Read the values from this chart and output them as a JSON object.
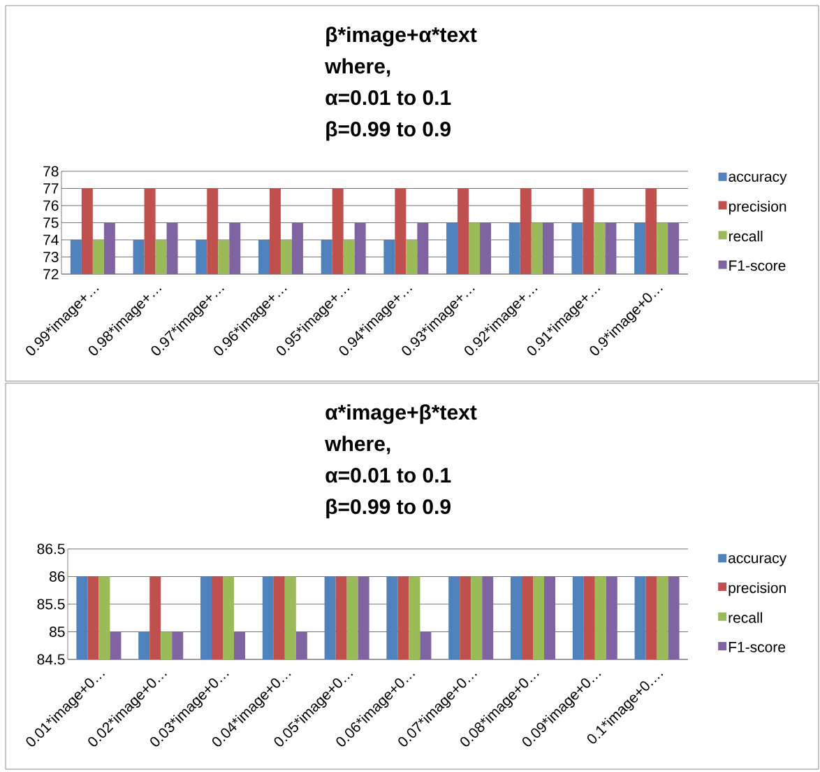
{
  "chart_data": [
    {
      "type": "bar",
      "title": "β*image+α*text",
      "subtitle": "where,",
      "annotations": [
        "α=0.01 to 0.1",
        "β=0.99 to 0.9"
      ],
      "categories": [
        "0.99*image+…",
        "0.98*image+…",
        "0.97*image+…",
        "0.96*image+…",
        "0.95*image+…",
        "0.94*image+…",
        "0.93*image+…",
        "0.92*image+…",
        "0.91*image+…",
        "0.9*image+0…"
      ],
      "series": [
        {
          "name": "accuracy",
          "color": "#4f81bd",
          "values": [
            74,
            74,
            74,
            74,
            74,
            74,
            75,
            75,
            75,
            75
          ]
        },
        {
          "name": "precision",
          "color": "#c0504d",
          "values": [
            77,
            77,
            77,
            77,
            77,
            77,
            77,
            77,
            77,
            77
          ]
        },
        {
          "name": "recall",
          "color": "#9bbb59",
          "values": [
            74,
            74,
            74,
            74,
            74,
            74,
            75,
            75,
            75,
            75
          ]
        },
        {
          "name": "F1-score",
          "color": "#8064a2",
          "values": [
            75,
            75,
            75,
            75,
            75,
            75,
            75,
            75,
            75,
            75
          ]
        }
      ],
      "ylim": [
        72,
        78
      ],
      "yticks": [
        72,
        73,
        74,
        75,
        76,
        77,
        78
      ],
      "grid": "y",
      "legend": "right"
    },
    {
      "type": "bar",
      "title": "α*image+β*text",
      "subtitle": "where,",
      "annotations": [
        "α=0.01 to 0.1",
        "β=0.99 to 0.9"
      ],
      "categories": [
        "0.01*image+0…",
        "0.02*image+0…",
        "0.03*image+0…",
        "0.04*image+0…",
        "0.05*image+0…",
        "0.06*image+0…",
        "0.07*image+0…",
        "0.08*image+0…",
        "0.09*image+0…",
        "0.1*image+0.…"
      ],
      "series": [
        {
          "name": "accuracy",
          "color": "#4f81bd",
          "values": [
            86,
            85,
            86,
            86,
            86,
            86,
            86,
            86,
            86,
            86
          ]
        },
        {
          "name": "precision",
          "color": "#c0504d",
          "values": [
            86,
            86,
            86,
            86,
            86,
            86,
            86,
            86,
            86,
            86
          ]
        },
        {
          "name": "recall",
          "color": "#9bbb59",
          "values": [
            86,
            85,
            86,
            86,
            86,
            86,
            86,
            86,
            86,
            86
          ]
        },
        {
          "name": "F1-score",
          "color": "#8064a2",
          "values": [
            85,
            85,
            85,
            85,
            86,
            85,
            86,
            86,
            86,
            86
          ]
        }
      ],
      "ylim": [
        84.5,
        86.5
      ],
      "yticks": [
        84.5,
        85,
        85.5,
        86,
        86.5
      ],
      "grid": "y",
      "legend": "right"
    }
  ]
}
